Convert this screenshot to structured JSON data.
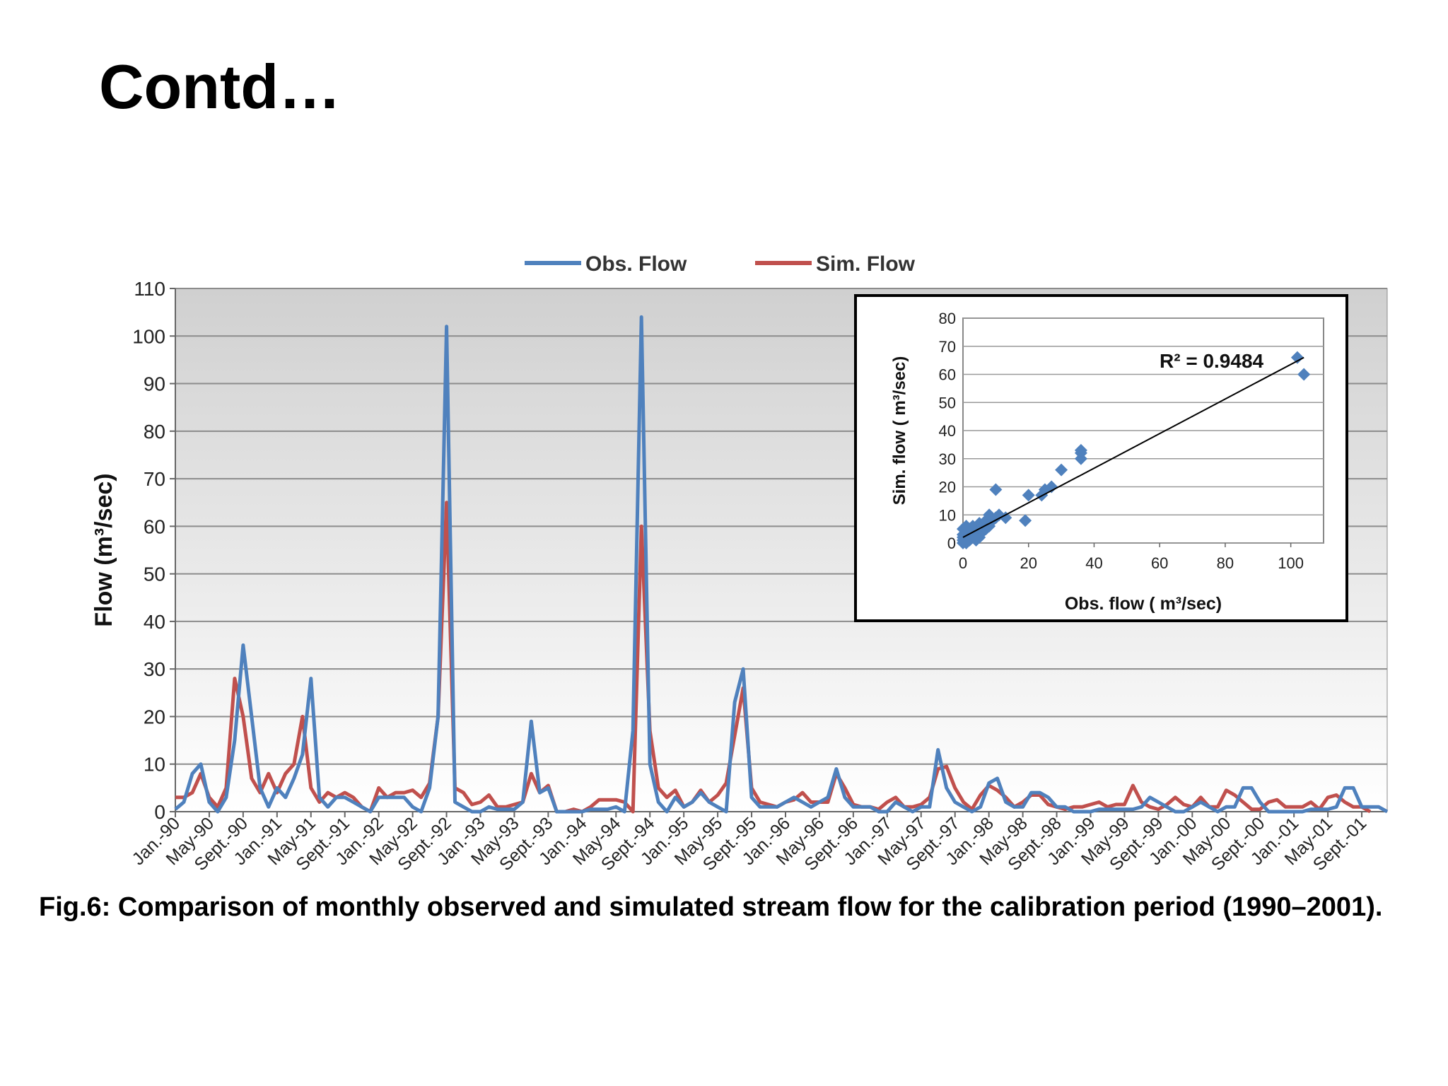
{
  "slide": {
    "title": "Contd…",
    "caption": "Fig.6: Comparison of monthly observed and simulated stream flow for the calibration period (1990–2001)."
  },
  "colors": {
    "obs": "#4f81bd",
    "sim": "#c0504d",
    "grid": "#8c8c8c",
    "bg_top": "#d0d0d0",
    "bg_bottom": "#ffffff"
  },
  "chart_data": [
    {
      "type": "line",
      "ylabel": "Flow (m³/sec)",
      "ylim": [
        0,
        110
      ],
      "yticks": [
        0,
        10,
        20,
        30,
        40,
        50,
        60,
        70,
        80,
        90,
        100,
        110
      ],
      "legend_position": "top-center",
      "grid": true,
      "x_tick_labels": [
        "Jan.-90",
        "May-90",
        "Sept.-90",
        "Jan.-91",
        "May-91",
        "Sept.-91",
        "Jan.-92",
        "May-92",
        "Sept.-92",
        "Jan.-93",
        "May-93",
        "Sept.-93",
        "Jan.-94",
        "May-94",
        "Sept.-94",
        "Jan.-95",
        "May-95",
        "Sept.-95",
        "Jan.-96",
        "May-96",
        "Sept.-96",
        "Jan.-97",
        "May-97",
        "Sept.-97",
        "Jan.-98",
        "May-98",
        "Sept.-98",
        "Jan.-99",
        "May-99",
        "Sept.-99",
        "Jan.-00",
        "May-00",
        "Sept.-00",
        "Jan.-01",
        "May-01",
        "Sept.-01"
      ],
      "series": [
        {
          "name": "Obs. Flow",
          "values": [
            0.5,
            2,
            8,
            10,
            2,
            0,
            3,
            15,
            35,
            20,
            5,
            1,
            5,
            3,
            7,
            12,
            28,
            3,
            1,
            3,
            3,
            2,
            1,
            0,
            3,
            3,
            3,
            3,
            1,
            0,
            5,
            20,
            102,
            2,
            1,
            0,
            0,
            1,
            0.5,
            0.5,
            0.5,
            2,
            19,
            4,
            5,
            0,
            0,
            0,
            0,
            0.5,
            0.5,
            0.5,
            1,
            0,
            17,
            104,
            10,
            2,
            0,
            3,
            1,
            2,
            4,
            2,
            1,
            0,
            23,
            30,
            3,
            1,
            1,
            1,
            2,
            3,
            2,
            1,
            2,
            3,
            9,
            3,
            1,
            1,
            1,
            0,
            0,
            2,
            1,
            0,
            1,
            1,
            13,
            5,
            2,
            1,
            0,
            1,
            6,
            7,
            2,
            1,
            1,
            4,
            4,
            3,
            1,
            1,
            0,
            0,
            0,
            0.5,
            0.5,
            0.5,
            0.5,
            0.5,
            1,
            3,
            2,
            1,
            0,
            0,
            1,
            2,
            1,
            0,
            1,
            1,
            5,
            5,
            2,
            0,
            0,
            0,
            0,
            0,
            0.5,
            0.5,
            0.5,
            1,
            5,
            5,
            1,
            1,
            1,
            0
          ],
          "color": "#4f81bd"
        },
        {
          "name": "Sim. Flow",
          "values": [
            3,
            3,
            4,
            8,
            3,
            1,
            5,
            28,
            20,
            7,
            4,
            8,
            4,
            8,
            10,
            20,
            5,
            2,
            4,
            3,
            4,
            3,
            1,
            0,
            5,
            3,
            4,
            4,
            4.5,
            3,
            6,
            20,
            65,
            5,
            4,
            1.5,
            2,
            3.5,
            1,
            1,
            1.5,
            2,
            8,
            4,
            5.5,
            0,
            0,
            0.5,
            0,
            1,
            2.5,
            2.5,
            2.5,
            2,
            0,
            60,
            17,
            5,
            3,
            4.5,
            1,
            2,
            4.5,
            2,
            3.5,
            6,
            16,
            26,
            5,
            2,
            1.5,
            1,
            2,
            2.5,
            4,
            2,
            2,
            2,
            8,
            5,
            1.5,
            1,
            1,
            0.5,
            2,
            3,
            1,
            1,
            1.5,
            3,
            9,
            9.5,
            5,
            2,
            0.5,
            3.5,
            5.5,
            4.5,
            3,
            1,
            2,
            3.5,
            3.5,
            1.5,
            1,
            0.5,
            1,
            1,
            1.5,
            2,
            1,
            1.5,
            1.5,
            5.5,
            2,
            1,
            0.5,
            1.5,
            3,
            1.5,
            1,
            3,
            1,
            1,
            4.5,
            3.5,
            2,
            0.5,
            0.5,
            2,
            2.5,
            1,
            1,
            1,
            2,
            0.5,
            3,
            3.5,
            2,
            1,
            1,
            0
          ],
          "color": "#c0504d"
        }
      ]
    },
    {
      "type": "scatter",
      "xlabel": "Obs. flow ( m³/sec)",
      "ylabel": "Sim. flow ( m³/sec)",
      "xlim": [
        0,
        110
      ],
      "ylim": [
        0,
        80
      ],
      "xticks": [
        0,
        20,
        40,
        60,
        80,
        100
      ],
      "yticks": [
        0,
        10,
        20,
        30,
        40,
        50,
        60,
        70,
        80
      ],
      "grid": true,
      "annotation": "R² = 0.9484",
      "trendline": {
        "x": [
          0,
          104
        ],
        "y": [
          2,
          66
        ]
      },
      "points": [
        [
          0,
          0
        ],
        [
          0,
          1
        ],
        [
          0,
          2
        ],
        [
          0,
          3
        ],
        [
          0,
          5
        ],
        [
          1,
          0
        ],
        [
          1,
          2
        ],
        [
          1,
          4
        ],
        [
          1,
          6
        ],
        [
          2,
          1
        ],
        [
          2,
          3
        ],
        [
          2,
          5
        ],
        [
          3,
          2
        ],
        [
          3,
          4
        ],
        [
          3,
          6
        ],
        [
          4,
          1
        ],
        [
          4,
          3
        ],
        [
          4,
          5
        ],
        [
          5,
          2
        ],
        [
          5,
          4
        ],
        [
          5,
          7
        ],
        [
          6,
          4
        ],
        [
          6,
          6
        ],
        [
          7,
          5
        ],
        [
          7,
          8
        ],
        [
          8,
          6
        ],
        [
          8,
          10
        ],
        [
          9,
          8
        ],
        [
          10,
          9
        ],
        [
          10,
          19
        ],
        [
          11,
          10
        ],
        [
          13,
          9
        ],
        [
          19,
          8
        ],
        [
          20,
          17
        ],
        [
          24,
          17
        ],
        [
          25,
          19
        ],
        [
          27,
          20
        ],
        [
          30,
          26
        ],
        [
          36,
          30
        ],
        [
          36,
          32
        ],
        [
          36,
          33
        ],
        [
          102,
          66
        ],
        [
          104,
          60
        ]
      ],
      "color": "#4f81bd"
    }
  ]
}
